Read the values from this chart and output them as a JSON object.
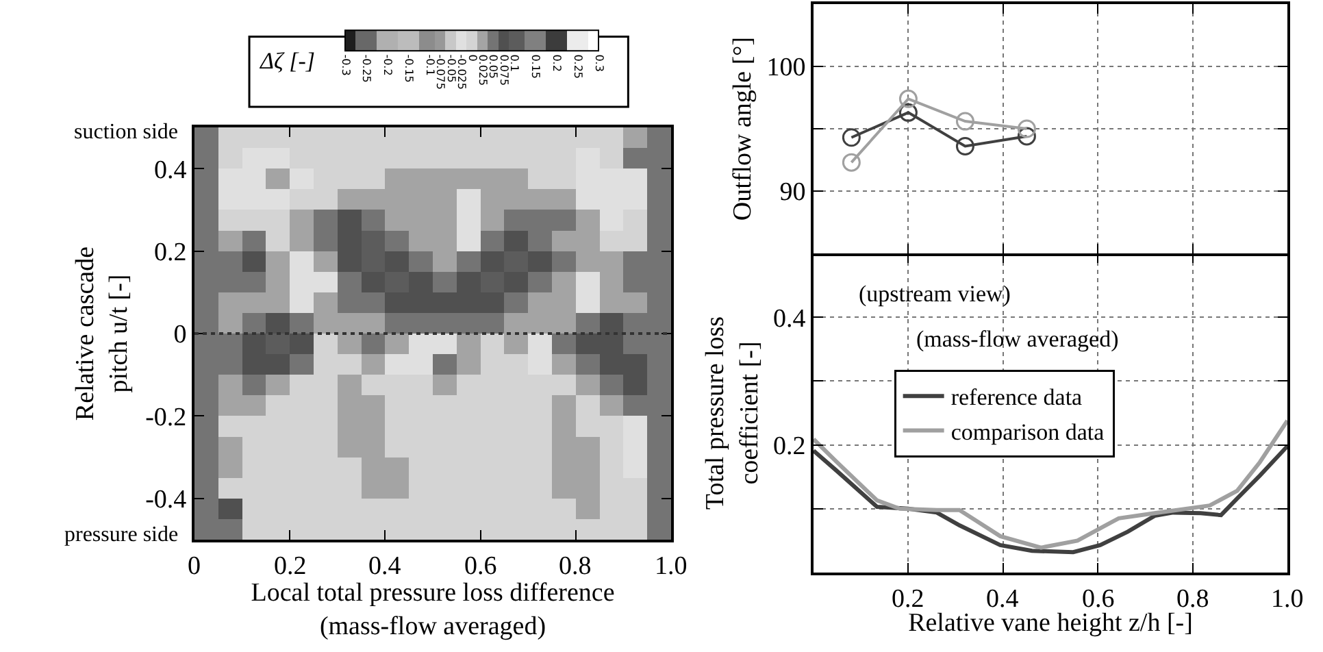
{
  "chart_data": [
    {
      "type": "heatmap",
      "xlabel": "Local total pressure loss difference\n(mass-flow averaged)",
      "ylabel": "Relative cascade\npitch u/t [-]",
      "clabel": "Δζ [-]",
      "annotations": [
        "suction side",
        "pressure side"
      ],
      "x": [
        0.025,
        0.075,
        0.125,
        0.175,
        0.225,
        0.275,
        0.325,
        0.375,
        0.425,
        0.475,
        0.525,
        0.575,
        0.625,
        0.675,
        0.725,
        0.775,
        0.825,
        0.875,
        0.925,
        0.975
      ],
      "y": [
        0.475,
        0.425,
        0.375,
        0.325,
        0.275,
        0.225,
        0.175,
        0.125,
        0.075,
        0.025,
        -0.025,
        -0.075,
        -0.125,
        -0.175,
        -0.225,
        -0.275,
        -0.325,
        -0.375,
        -0.425,
        -0.475
      ],
      "cells": [
        [
          0.05,
          0,
          0,
          0,
          0,
          0,
          0,
          0,
          0,
          0,
          0,
          0,
          0,
          0,
          0,
          0,
          0,
          0,
          0.025,
          0.05
        ],
        [
          0.05,
          0,
          -0.025,
          -0.025,
          0,
          0,
          0,
          0,
          0,
          0,
          0,
          0,
          0,
          0,
          0,
          0,
          -0.025,
          0,
          0.05,
          0.05
        ],
        [
          0.05,
          -0.025,
          -0.025,
          0.025,
          -0.025,
          0,
          0,
          0,
          0.025,
          0.025,
          0.025,
          0.025,
          0.025,
          0.025,
          0,
          0,
          -0.025,
          -0.025,
          -0.025,
          0.05
        ],
        [
          0.05,
          -0.025,
          -0.025,
          -0.025,
          0,
          0,
          0.025,
          0.025,
          0.025,
          0.025,
          0.025,
          -0.025,
          0.025,
          0.025,
          0.025,
          0.025,
          -0.025,
          -0.025,
          -0.025,
          0.05
        ],
        [
          0.05,
          0,
          0,
          0,
          0.025,
          0.05,
          0.075,
          0.05,
          0.025,
          0.025,
          0.025,
          -0.025,
          0.025,
          0.05,
          0.05,
          0.05,
          0.025,
          -0.025,
          0,
          0.05
        ],
        [
          0.05,
          0.025,
          0.05,
          0,
          0.025,
          0.05,
          0.075,
          0.1,
          0.05,
          0.025,
          0.025,
          -0.025,
          0.05,
          0.075,
          0.05,
          0.025,
          0.025,
          0,
          0,
          0.05
        ],
        [
          0.05,
          0.05,
          0.075,
          0.025,
          -0.025,
          0.025,
          0.075,
          0.1,
          0.075,
          0.05,
          0.025,
          0.05,
          0.075,
          0.1,
          0.075,
          0.05,
          0.025,
          0.025,
          0.05,
          0.05
        ],
        [
          0.05,
          0.05,
          0.05,
          0.025,
          -0.025,
          -0.025,
          0.05,
          0.075,
          0.1,
          0.075,
          0.05,
          0.075,
          0.1,
          0.075,
          0.05,
          0.025,
          -0.025,
          0.025,
          0.05,
          0.05
        ],
        [
          0.05,
          0.025,
          0.025,
          0.025,
          -0.025,
          0.025,
          0.05,
          0.05,
          0.075,
          0.075,
          0.075,
          0.075,
          0.075,
          0.05,
          0.025,
          0.025,
          -0.025,
          0.025,
          0.025,
          0.05
        ],
        [
          0.05,
          0.025,
          0.05,
          0.075,
          0.05,
          0.025,
          0.025,
          0.025,
          0.05,
          0.05,
          0.05,
          0.05,
          0.05,
          0.025,
          0.025,
          0.025,
          0.05,
          0.075,
          0.05,
          0.05
        ],
        [
          0.05,
          0.05,
          0.075,
          0.1,
          0.075,
          0,
          0.025,
          0.05,
          0.025,
          -0.025,
          -0.025,
          0.025,
          0,
          0.025,
          -0.025,
          0.05,
          0.075,
          0.075,
          0.05,
          0.05
        ],
        [
          0.05,
          0.05,
          0.075,
          0.075,
          0.05,
          0,
          0,
          0.025,
          -0.025,
          -0.025,
          0.05,
          0.025,
          0,
          0,
          -0.025,
          0.025,
          0.05,
          0.075,
          0.075,
          0.05
        ],
        [
          0.05,
          0.025,
          0.05,
          0.025,
          0,
          0,
          0.025,
          0,
          0,
          0,
          0.025,
          0,
          0,
          0,
          0,
          0,
          0.025,
          0.05,
          0.075,
          0.05
        ],
        [
          0.05,
          0.025,
          0.025,
          0,
          0,
          0,
          0.025,
          0.025,
          0,
          0,
          0,
          0,
          0,
          0,
          0,
          0.025,
          0,
          0.025,
          0.05,
          0.05
        ],
        [
          0.05,
          0,
          0,
          0,
          0,
          0,
          0.025,
          0.025,
          0,
          0,
          0,
          0,
          0,
          0,
          0,
          0.025,
          0,
          0,
          -0.025,
          0.05
        ],
        [
          0.05,
          0.025,
          0,
          0,
          0,
          0,
          0.025,
          0.025,
          0,
          0,
          0,
          0,
          0,
          0,
          0,
          0.025,
          0.025,
          0,
          -0.025,
          0.05
        ],
        [
          0.05,
          0.025,
          0,
          0,
          0,
          0,
          0,
          0.025,
          0.025,
          0,
          0,
          0,
          0,
          0,
          0,
          0.025,
          0.025,
          0,
          -0.025,
          0.05
        ],
        [
          0.05,
          0,
          0,
          0,
          0,
          0,
          0,
          0.025,
          0.025,
          0,
          0,
          0,
          0,
          0,
          0,
          0.025,
          0.025,
          0,
          0,
          0.05
        ],
        [
          0.05,
          0.075,
          0,
          0,
          0,
          0,
          0,
          0,
          0,
          0,
          0,
          0,
          0,
          0,
          0,
          0,
          0.025,
          0,
          0,
          0.05
        ],
        [
          0.05,
          0.05,
          0,
          0,
          0,
          0,
          0,
          0,
          0,
          0,
          0,
          0,
          0,
          0,
          0,
          0,
          0,
          0,
          0,
          0.05
        ]
      ],
      "clim": [
        -0.3,
        0.3
      ],
      "cticks": [
        -0.3,
        -0.25,
        -0.2,
        -0.15,
        -0.1,
        -0.075,
        -0.05,
        -0.025,
        0,
        0.025,
        0.05,
        0.075,
        0.1,
        0.15,
        0.2,
        0.25,
        0.3
      ],
      "colors": [
        "#1e1e1e",
        "#686868",
        "#b0b0b0",
        "#bcbcbc",
        "#8c8c8c",
        "#989898",
        "#c8c8c8",
        "#e0e0e0",
        "#d4d4d4",
        "#a4a4a4",
        "#747474",
        "#505050",
        "#5c5c5c",
        "#808080",
        "#3c3c3c",
        "#ececec",
        "#ffffff"
      ],
      "xlim": [
        0,
        1
      ],
      "xticks": [
        0,
        0.2,
        0.4,
        0.6,
        0.8,
        {
          "value": 1,
          "label": "1.0"
        }
      ],
      "ylim": [
        -0.5,
        0.5
      ],
      "yticks": [
        -0.4,
        -0.2,
        0,
        0.2,
        0.4
      ],
      "ref_lines": [
        {
          "axis": "y",
          "value": 0,
          "color": "#333333",
          "line_style": "dotted"
        }
      ]
    },
    {
      "type": "line",
      "ylabel": "Outflow angle [°]",
      "marker": "circle",
      "grid": true,
      "tick_labels": "y",
      "series": [
        {
          "color": "#404040",
          "x": [
            0.08,
            0.2,
            0.32,
            0.45
          ],
          "values": [
            94.3,
            96.3,
            93.6,
            94.4
          ]
        },
        {
          "color": "#a0a0a0",
          "x": [
            0.08,
            0.2,
            0.32,
            0.45
          ],
          "values": [
            92.3,
            97.4,
            95.6,
            95.0
          ]
        }
      ],
      "xlim": [
        0,
        1
      ],
      "xticks": [
        0.2,
        0.4,
        0.6,
        0.8
      ],
      "ylim": [
        85,
        105
      ],
      "yticks": [
        90,
        {
          "value": 95,
          "label": null
        },
        100
      ]
    },
    {
      "type": "line",
      "xlabel": "Relative vane height z/h [-]",
      "ylabel": "Total pressure loss\ncoefficient [-]",
      "grid": true,
      "legend": "left",
      "annotations": [
        "(upstream view)",
        "(mass-flow averaged)"
      ],
      "series": [
        {
          "name": "reference data",
          "color": "#404040",
          "x": [
            0,
            0.048,
            0.134,
            0.2,
            0.26,
            0.308,
            0.394,
            0.461,
            0.548,
            0.605,
            0.663,
            0.72,
            0.759,
            0.817,
            0.86,
            0.894,
            0.942,
            1.0
          ],
          "values": [
            0.191,
            0.16,
            0.103,
            0.1,
            0.094,
            0.074,
            0.043,
            0.034,
            0.032,
            0.043,
            0.064,
            0.089,
            0.094,
            0.093,
            0.09,
            0.116,
            0.152,
            0.198
          ]
        },
        {
          "name": "comparison data",
          "color": "#a0a0a0",
          "x": [
            0,
            0.048,
            0.134,
            0.182,
            0.26,
            0.308,
            0.394,
            0.48,
            0.557,
            0.644,
            0.72,
            0.836,
            0.894,
            0.942,
            1.0
          ],
          "values": [
            0.209,
            0.174,
            0.113,
            0.1,
            0.098,
            0.098,
            0.057,
            0.039,
            0.05,
            0.085,
            0.093,
            0.105,
            0.128,
            0.173,
            0.238
          ]
        }
      ],
      "xlim": [
        0,
        1
      ],
      "xticks": [
        0.2,
        0.4,
        0.6,
        0.8,
        {
          "value": 1,
          "label": "1.0"
        }
      ],
      "ylim": [
        0,
        0.5
      ],
      "yticks": [
        {
          "value": 0.1,
          "label": null
        },
        0.2,
        {
          "value": 0.3,
          "label": null
        },
        0.4
      ]
    }
  ]
}
